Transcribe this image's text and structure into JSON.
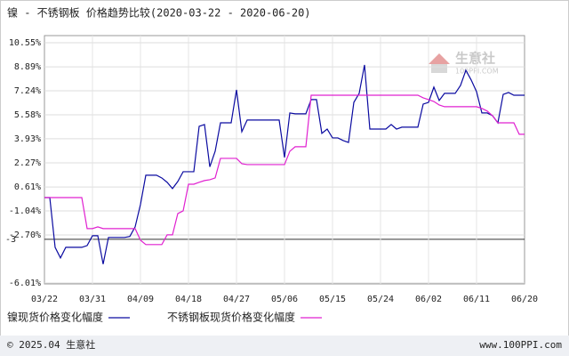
{
  "chart_data": {
    "type": "line",
    "title": "镍 - 不锈钢板 价格趋势比较(2020-03-22 - 2020-06-20)",
    "categories": [
      "03/22",
      null,
      null,
      null,
      null,
      null,
      null,
      null,
      null,
      "03/31",
      null,
      null,
      null,
      null,
      null,
      null,
      null,
      null,
      "04/09",
      null,
      null,
      null,
      null,
      null,
      null,
      null,
      null,
      "04/18",
      null,
      null,
      null,
      null,
      null,
      null,
      null,
      null,
      "04/27",
      null,
      null,
      null,
      null,
      null,
      null,
      null,
      null,
      "05/06",
      null,
      null,
      null,
      null,
      null,
      null,
      null,
      null,
      "05/15",
      null,
      null,
      null,
      null,
      null,
      null,
      null,
      null,
      "05/24",
      null,
      null,
      null,
      null,
      null,
      null,
      null,
      null,
      "06/02",
      null,
      null,
      null,
      null,
      null,
      null,
      null,
      null,
      "06/11",
      null,
      null,
      null,
      null,
      null,
      null,
      null,
      null,
      "06/20"
    ],
    "series": [
      {
        "name": "镍现货价格变化幅度",
        "color": "#0a0aa0",
        "values": [
          -0.12,
          -0.12,
          -3.55,
          -4.28,
          -3.55,
          -3.55,
          -3.55,
          -3.55,
          -3.43,
          -2.75,
          -2.75,
          -4.71,
          -2.87,
          -2.87,
          -2.87,
          -2.87,
          -2.8,
          -2.14,
          -0.6,
          1.42,
          1.42,
          1.42,
          1.23,
          0.93,
          0.5,
          0.99,
          1.66,
          1.66,
          1.66,
          4.79,
          4.91,
          2.0,
          3.07,
          5.03,
          5.03,
          5.03,
          7.3,
          4.42,
          5.22,
          5.22,
          5.22,
          5.22,
          5.22,
          5.22,
          5.22,
          2.64,
          5.71,
          5.65,
          5.65,
          5.65,
          6.63,
          6.63,
          4.3,
          4.6,
          3.99,
          3.99,
          3.81,
          3.68,
          6.44,
          7.06,
          9.02,
          4.6,
          4.6,
          4.6,
          4.6,
          4.91,
          4.6,
          4.73,
          4.73,
          4.73,
          4.73,
          6.32,
          6.44,
          7.49,
          6.57,
          7.06,
          7.06,
          7.06,
          7.61,
          8.65,
          7.98,
          7.18,
          5.71,
          5.71,
          5.52,
          5.03,
          6.99,
          7.12,
          6.93,
          6.93,
          6.93
        ]
      },
      {
        "name": "不锈钢板现货价格变化幅度",
        "color": "#e020d0",
        "values": [
          -0.12,
          -0.12,
          -0.12,
          -0.12,
          -0.12,
          -0.12,
          -0.12,
          -0.12,
          -2.26,
          -2.26,
          -2.14,
          -2.26,
          -2.26,
          -2.26,
          -2.26,
          -2.26,
          -2.26,
          -2.26,
          -3.06,
          -3.36,
          -3.36,
          -3.36,
          -3.36,
          -2.69,
          -2.69,
          -1.22,
          -1.04,
          0.8,
          0.8,
          0.93,
          1.05,
          1.11,
          1.23,
          2.58,
          2.58,
          2.58,
          2.58,
          2.21,
          2.15,
          2.15,
          2.15,
          2.15,
          2.15,
          2.15,
          2.15,
          2.15,
          3.07,
          3.38,
          3.38,
          3.38,
          6.93,
          6.93,
          6.93,
          6.93,
          6.93,
          6.93,
          6.93,
          6.93,
          6.93,
          6.93,
          6.93,
          6.93,
          6.93,
          6.93,
          6.93,
          6.93,
          6.93,
          6.93,
          6.93,
          6.93,
          6.93,
          6.75,
          6.63,
          6.5,
          6.26,
          6.14,
          6.14,
          6.14,
          6.14,
          6.14,
          6.14,
          6.14,
          6.02,
          5.84,
          5.52,
          5.03,
          5.03,
          5.03,
          5.03,
          4.24,
          4.24
        ]
      }
    ],
    "ylim": [
      -6.01,
      10.55
    ],
    "yticks": [
      {
        "value": 10.55,
        "label": "10.55%"
      },
      {
        "value": 8.89,
        "label": "8.89%"
      },
      {
        "value": 7.24,
        "label": "7.24%"
      },
      {
        "value": 5.58,
        "label": "5.58%"
      },
      {
        "value": 3.93,
        "label": "3.93%"
      },
      {
        "value": 2.27,
        "label": "2.27%"
      },
      {
        "value": 0.61,
        "label": "0.61%"
      },
      {
        "value": -1.04,
        "label": "-1.04%"
      },
      {
        "value": -2.7,
        "label": "-2.70%"
      },
      {
        "value": -6.01,
        "label": "-6.01%"
      }
    ],
    "reference_line": {
      "value": -3,
      "label": "-3"
    },
    "grid": true,
    "watermark": {
      "name": "生意社",
      "site": "100PPI.COM"
    },
    "footer": {
      "copyright": "© 2025.04 生意社",
      "url": "www.100PPI.com"
    }
  }
}
